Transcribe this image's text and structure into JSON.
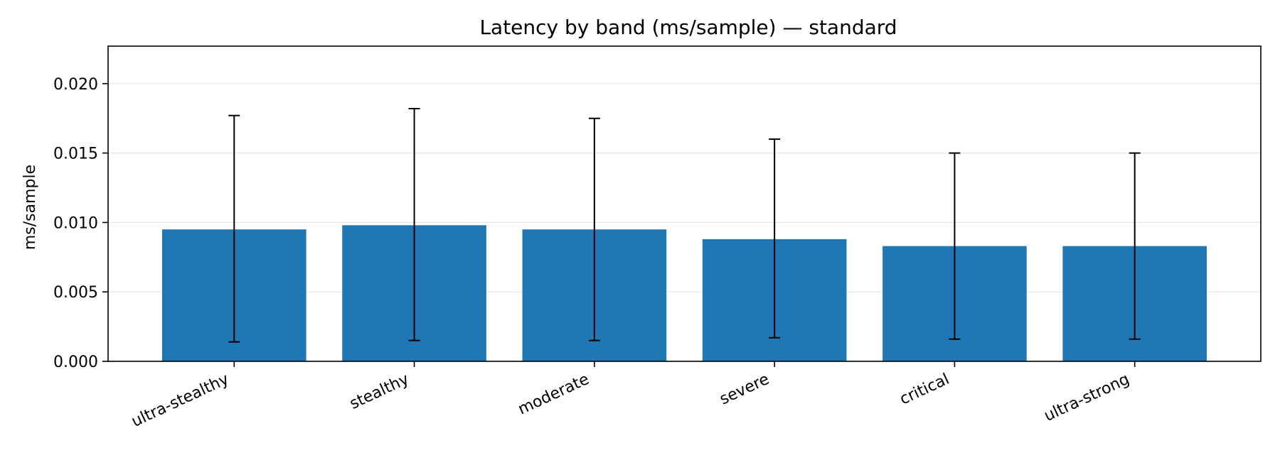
{
  "chart_data": {
    "type": "bar",
    "title": "Latency by band (ms/sample) — standard",
    "xlabel": "",
    "ylabel": "ms/sample",
    "categories": [
      "ultra-stealthy",
      "stealthy",
      "moderate",
      "severe",
      "critical",
      "ultra-strong"
    ],
    "values": [
      0.0095,
      0.0098,
      0.0095,
      0.0088,
      0.0083,
      0.0083
    ],
    "error_low": [
      0.0014,
      0.0015,
      0.0015,
      0.0017,
      0.0016,
      0.0016
    ],
    "error_high": [
      0.0177,
      0.0182,
      0.0175,
      0.016,
      0.015,
      0.015
    ],
    "ylim": [
      0,
      0.0227
    ],
    "yticks": [
      0.0,
      0.005,
      0.01,
      0.015,
      0.02
    ],
    "ytick_labels": [
      "0.000",
      "0.005",
      "0.010",
      "0.015",
      "0.020"
    ],
    "grid": true,
    "bar_color": "#1f77b4",
    "errorbar_color": "#000000",
    "grid_color": "#e6e6e6"
  }
}
